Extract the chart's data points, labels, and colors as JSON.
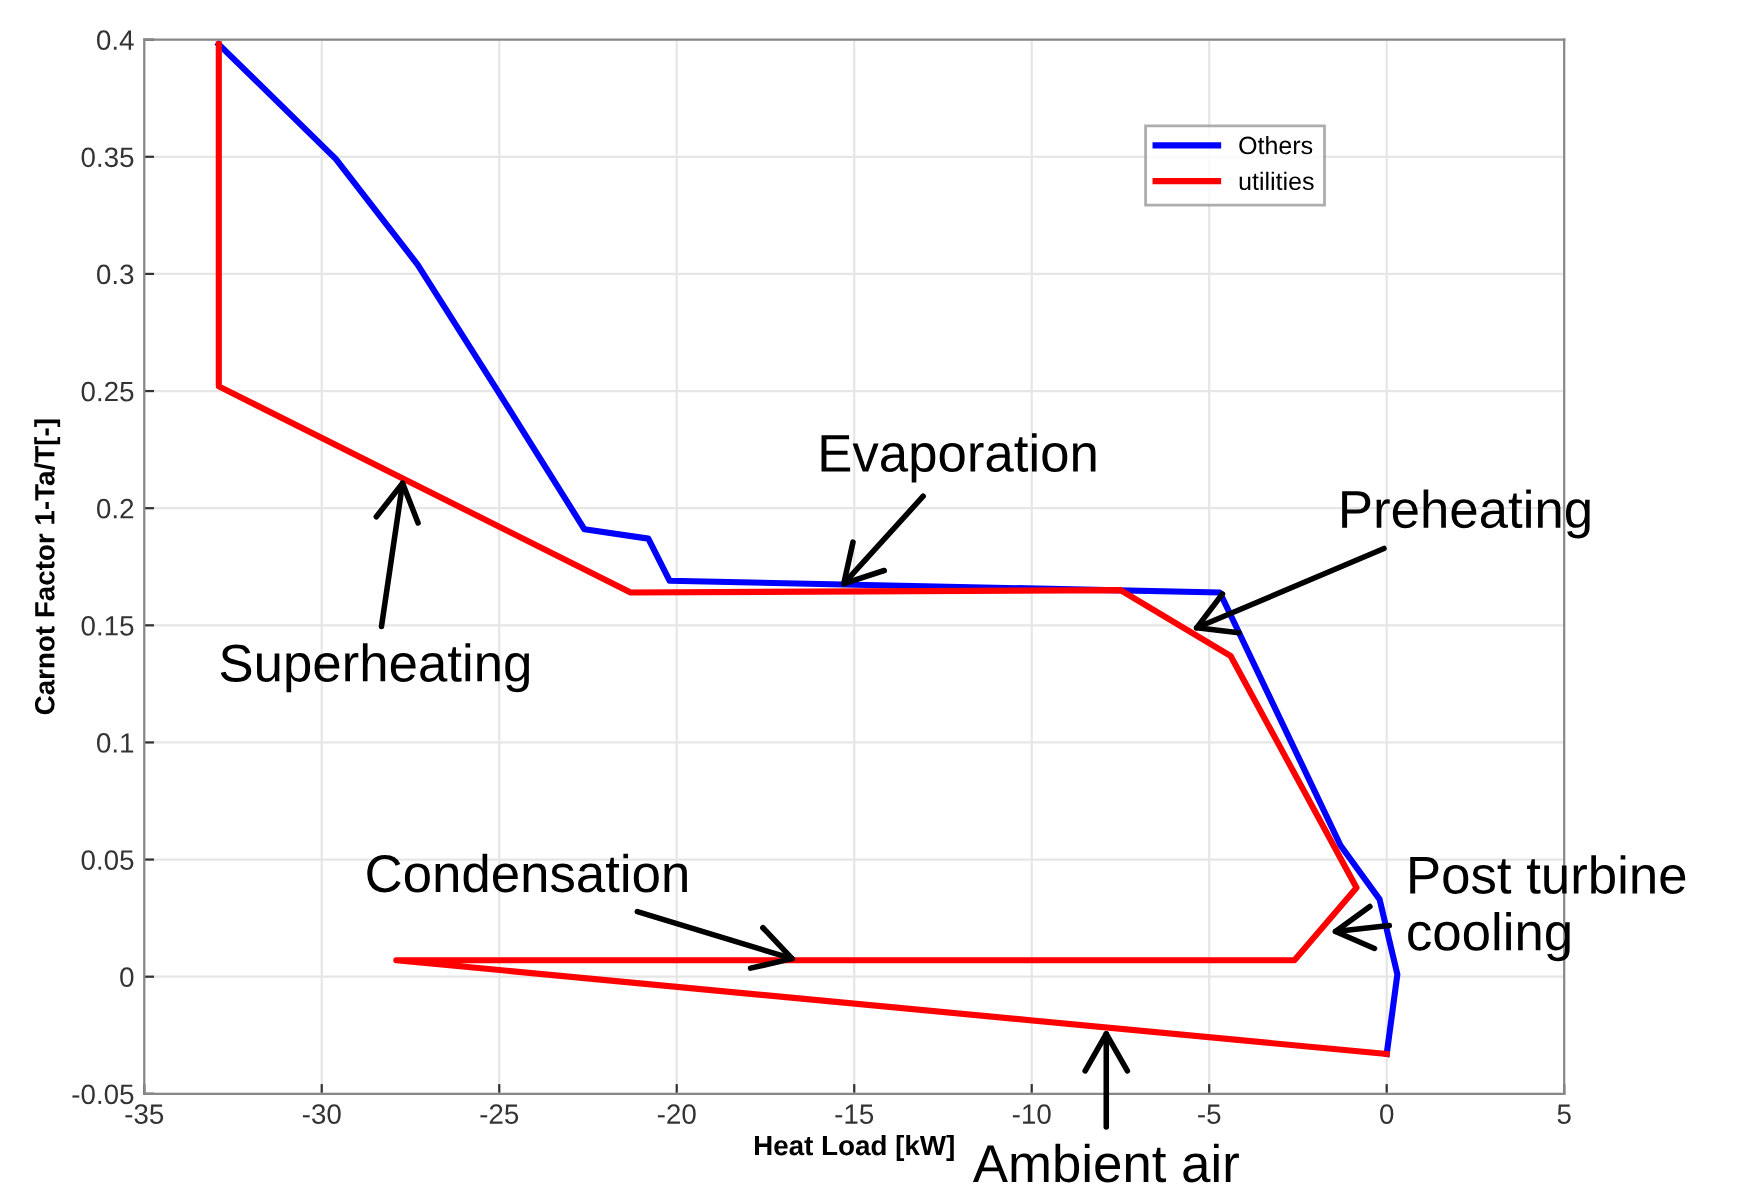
{
  "chart_data": {
    "type": "line",
    "xlabel": "Heat Load [kW]",
    "ylabel": "Carnot Factor 1-Ta/T[-]",
    "xlim": [
      -35,
      5
    ],
    "xticks": [
      -35,
      -30,
      -25,
      -20,
      -15,
      -10,
      -5,
      0,
      5
    ],
    "ylim": [
      -0.05,
      0.4
    ],
    "yticks": [
      -0.05,
      0,
      0.05,
      0.1,
      0.15,
      0.2,
      0.25,
      0.3,
      0.35,
      0.4
    ],
    "grid": true,
    "legend": "top right",
    "marker": "none",
    "line_style": "solid",
    "series": [
      {
        "name": "Others",
        "color": "#0000ff",
        "x": [
          -32.9,
          -29.6,
          -27.3,
          -25,
          -22.6,
          -20.8,
          -20.2,
          -4.7,
          -1.3,
          -0.2,
          0.3,
          0
        ],
        "values": [
          0.398,
          0.349,
          0.304,
          0.249,
          0.191,
          0.187,
          0.169,
          0.164,
          0.056,
          0.033,
          0.001,
          -0.033
        ]
      },
      {
        "name": "utilities",
        "color": "#ff0000",
        "x": [
          -32.9,
          -32.9,
          -21.3,
          -7.5,
          -4.4,
          -0.85,
          -2.6,
          -27.9,
          0
        ],
        "values": [
          0.398,
          0.252,
          0.164,
          0.165,
          0.137,
          0.038,
          0.007,
          0.007,
          -0.033
        ]
      }
    ],
    "annotations": [
      {
        "text": "Evaporation",
        "x": -15.4,
        "y": 0.166
      },
      {
        "text": "Preheating",
        "x": -5.5,
        "y": 0.148
      },
      {
        "text": "Superheating",
        "x": -27.7,
        "y": 0.213
      },
      {
        "text": "Condensation",
        "x": -16.6,
        "y": 0.007
      },
      {
        "text": "Post turbine\ncooling",
        "x": -1.6,
        "y": 0.019
      },
      {
        "text": "Ambient air",
        "x": -7.9,
        "y": -0.022
      }
    ]
  }
}
